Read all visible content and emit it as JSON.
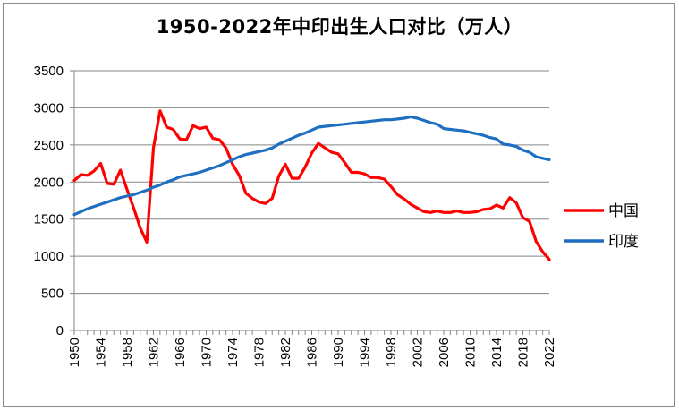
{
  "chart_data": {
    "type": "line",
    "title": "1950-2022年中印出生人口对比（万人）",
    "xlabel": "",
    "ylabel": "",
    "x_range": [
      1950,
      2022
    ],
    "ylim": [
      0,
      3500
    ],
    "y_ticks": [
      0,
      500,
      1000,
      1500,
      2000,
      2500,
      3000,
      3500
    ],
    "x_tick_labels": [
      "1950",
      "1954",
      "1958",
      "1962",
      "1966",
      "1970",
      "1974",
      "1978",
      "1982",
      "1986",
      "1990",
      "1994",
      "1998",
      "2002",
      "2006",
      "2010",
      "2014",
      "2018",
      "2022"
    ],
    "grid": "horizontal",
    "legend_position": "right",
    "series": [
      {
        "name": "中国",
        "color": "#ff0000",
        "x": [
          1950,
          1951,
          1952,
          1953,
          1954,
          1955,
          1956,
          1957,
          1958,
          1959,
          1960,
          1961,
          1962,
          1963,
          1964,
          1965,
          1966,
          1967,
          1968,
          1969,
          1970,
          1971,
          1972,
          1973,
          1974,
          1975,
          1976,
          1977,
          1978,
          1979,
          1980,
          1981,
          1982,
          1983,
          1984,
          1985,
          1986,
          1987,
          1988,
          1989,
          1990,
          1991,
          1992,
          1993,
          1994,
          1995,
          1996,
          1997,
          1998,
          1999,
          2000,
          2001,
          2002,
          2003,
          2004,
          2005,
          2006,
          2007,
          2008,
          2009,
          2010,
          2011,
          2012,
          2013,
          2014,
          2015,
          2016,
          2017,
          2018,
          2019,
          2020,
          2021,
          2022
        ],
        "values": [
          2020,
          2100,
          2090,
          2150,
          2250,
          1980,
          1970,
          2160,
          1900,
          1650,
          1380,
          1190,
          2460,
          2960,
          2740,
          2710,
          2580,
          2570,
          2760,
          2720,
          2740,
          2590,
          2570,
          2460,
          2240,
          2090,
          1850,
          1780,
          1730,
          1710,
          1780,
          2080,
          2240,
          2050,
          2050,
          2200,
          2390,
          2520,
          2460,
          2400,
          2380,
          2260,
          2130,
          2130,
          2110,
          2060,
          2060,
          2040,
          1940,
          1830,
          1770,
          1700,
          1650,
          1600,
          1590,
          1610,
          1590,
          1590,
          1610,
          1590,
          1590,
          1600,
          1630,
          1640,
          1690,
          1650,
          1790,
          1720,
          1520,
          1470,
          1200,
          1060,
          956
        ]
      },
      {
        "name": "印度",
        "color": "#1f6fc0",
        "x": [
          1950,
          1951,
          1952,
          1953,
          1954,
          1955,
          1956,
          1957,
          1958,
          1959,
          1960,
          1961,
          1962,
          1963,
          1964,
          1965,
          1966,
          1967,
          1968,
          1969,
          1970,
          1971,
          1972,
          1973,
          1974,
          1975,
          1976,
          1977,
          1978,
          1979,
          1980,
          1981,
          1982,
          1983,
          1984,
          1985,
          1986,
          1987,
          1988,
          1989,
          1990,
          1991,
          1992,
          1993,
          1994,
          1995,
          1996,
          1997,
          1998,
          1999,
          2000,
          2001,
          2002,
          2003,
          2004,
          2005,
          2006,
          2007,
          2008,
          2009,
          2010,
          2011,
          2012,
          2013,
          2014,
          2015,
          2016,
          2017,
          2018,
          2019,
          2020,
          2021,
          2022
        ],
        "values": [
          1560,
          1600,
          1640,
          1670,
          1700,
          1730,
          1760,
          1790,
          1810,
          1830,
          1860,
          1890,
          1930,
          1960,
          2000,
          2030,
          2070,
          2090,
          2110,
          2130,
          2160,
          2190,
          2220,
          2260,
          2300,
          2340,
          2370,
          2390,
          2410,
          2430,
          2460,
          2510,
          2550,
          2590,
          2630,
          2660,
          2700,
          2740,
          2750,
          2760,
          2770,
          2780,
          2790,
          2800,
          2810,
          2820,
          2830,
          2840,
          2840,
          2850,
          2860,
          2880,
          2860,
          2830,
          2800,
          2780,
          2720,
          2710,
          2700,
          2690,
          2670,
          2650,
          2630,
          2600,
          2580,
          2510,
          2500,
          2480,
          2430,
          2400,
          2340,
          2320,
          2300
        ]
      }
    ]
  }
}
